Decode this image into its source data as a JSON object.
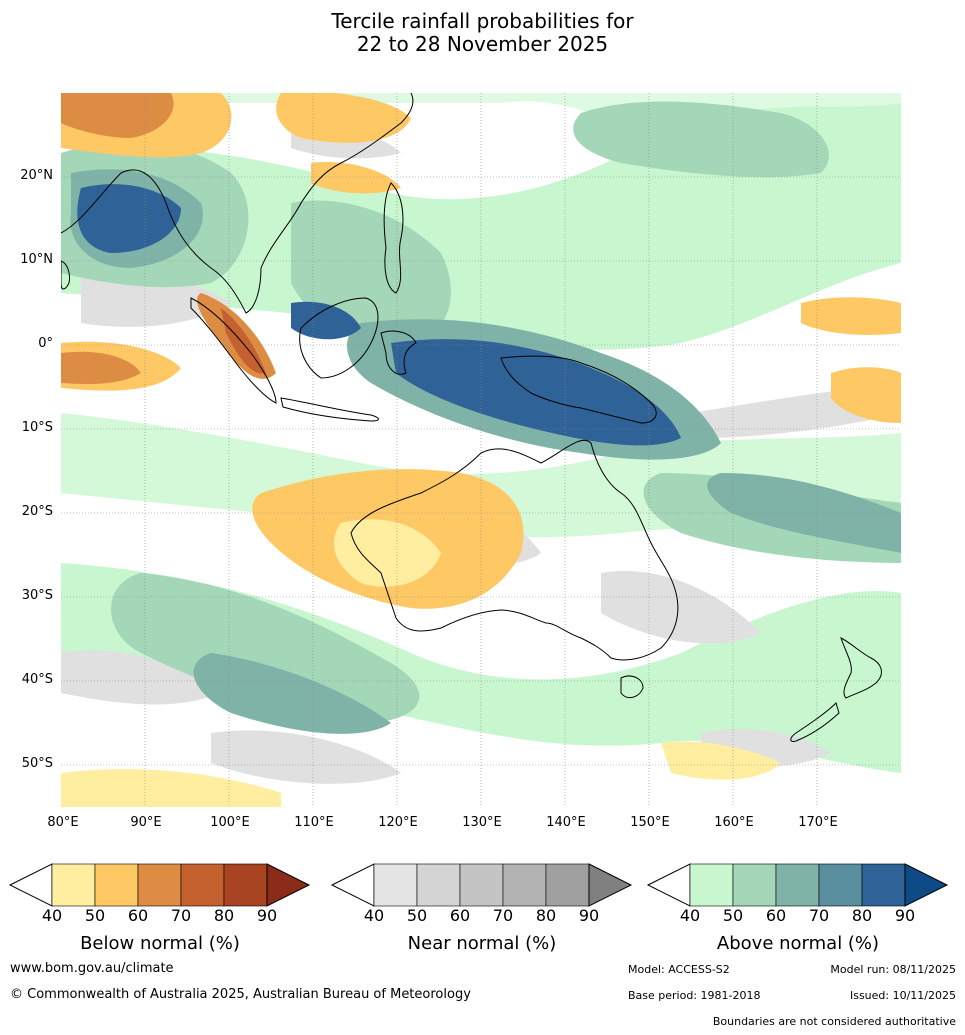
{
  "title": {
    "line1": "Tercile rainfall probabilities for",
    "line2": "22 to 28 November 2025"
  },
  "map": {
    "description_region": "Indian Ocean, Maritime Continent, Australia, Western Pacific",
    "lat_labels": [
      "20°N",
      "10°N",
      "0°",
      "10°S",
      "20°S",
      "30°S",
      "40°S",
      "50°S"
    ],
    "lon_labels": [
      "80°E",
      "90°E",
      "100°E",
      "110°E",
      "120°E",
      "130°E",
      "140°E",
      "150°E",
      "160°E",
      "170°E"
    ]
  },
  "legends": {
    "below": {
      "label": "Below normal (%)",
      "ticks": [
        "40",
        "50",
        "60",
        "70",
        "80",
        "90"
      ],
      "colors": [
        "#ffeda0",
        "#fec965",
        "#dd8c43",
        "#c5602f",
        "#a94423",
        "#8a2c19"
      ]
    },
    "near": {
      "label": "Near normal (%)",
      "ticks": [
        "40",
        "50",
        "60",
        "70",
        "80",
        "90"
      ],
      "colors": [
        "#e5e5e5",
        "#d4d4d4",
        "#c4c4c4",
        "#b3b3b3",
        "#a0a0a0",
        "#808080"
      ]
    },
    "above": {
      "label": "Above normal (%)",
      "ticks": [
        "40",
        "50",
        "60",
        "70",
        "80",
        "90"
      ],
      "colors": [
        "#c8f7cf",
        "#a4d7b8",
        "#7fb3a8",
        "#5a8fa0",
        "#2f6397",
        "#0e4b86"
      ]
    }
  },
  "footer": {
    "website": "www.bom.gov.au/climate",
    "copyright": "© Commonwealth of Australia 2025, Australian Bureau of Meteorology",
    "model": "Model: ACCESS-S2",
    "model_run": "Model run: 08/11/2025",
    "base_period": "Base period: 1981-2018",
    "issued": "Issued: 10/11/2025",
    "disclaimer": "Boundaries are not considered authoritative"
  }
}
